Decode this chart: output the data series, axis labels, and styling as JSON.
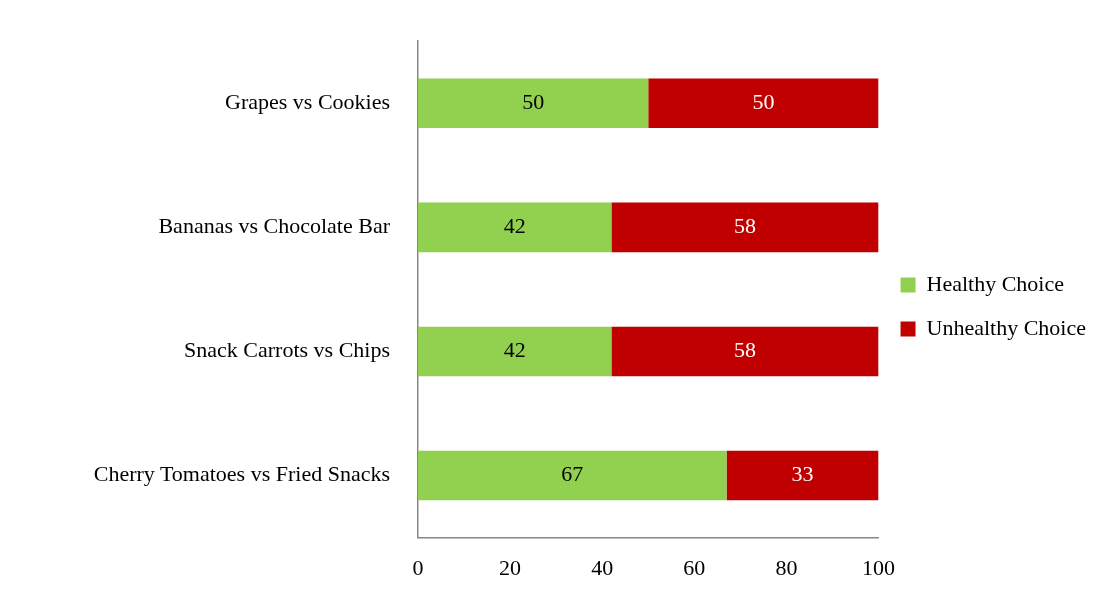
{
  "chart_data": {
    "type": "bar",
    "orientation": "horizontal",
    "stacked": true,
    "categories": [
      "Grapes vs Cookies",
      "Bananas vs Chocolate Bar",
      "Snack Carrots vs Chips",
      "Cherry Tomatoes vs Fried Snacks"
    ],
    "series": [
      {
        "name": "Healthy Choice",
        "color": "#92d050",
        "values": [
          50,
          42,
          42,
          67
        ]
      },
      {
        "name": "Unhealthy Choice",
        "color": "#c00000",
        "values": [
          50,
          58,
          58,
          33
        ]
      }
    ],
    "xlim": [
      0,
      100
    ],
    "xticks": [
      0,
      20,
      40,
      60,
      80,
      100
    ],
    "data_labels": true,
    "grid": false,
    "legend": "right"
  }
}
